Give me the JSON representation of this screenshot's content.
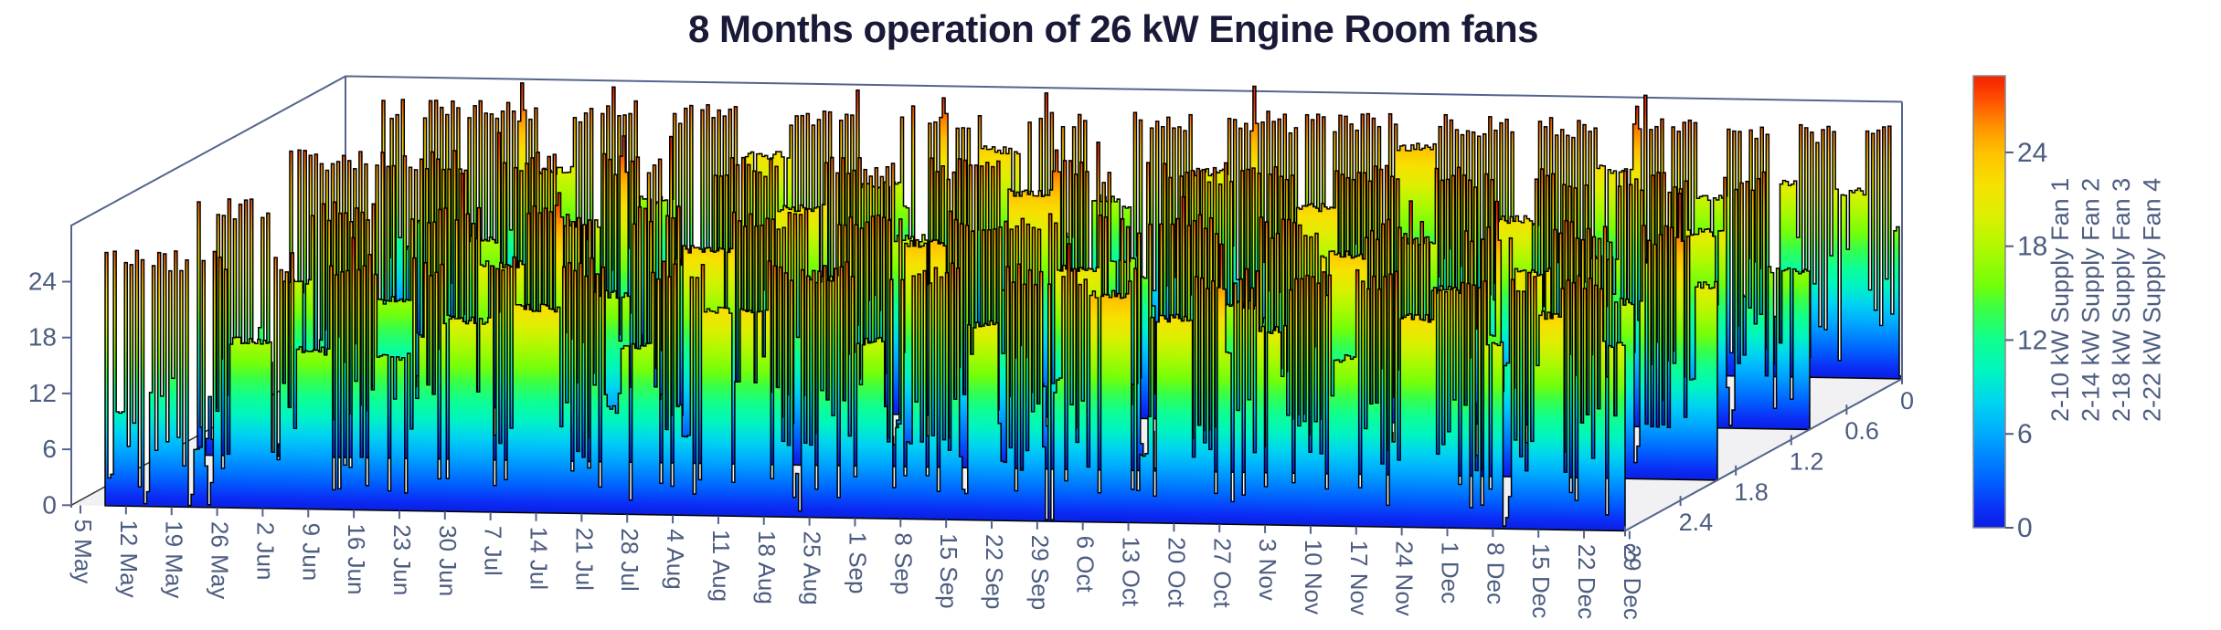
{
  "title": {
    "text": "8 Months operation of 26 kW Engine Room fans"
  },
  "colors": {
    "title": "#191938",
    "axis_line": "#54648c",
    "tick_label": "#4d5d80",
    "floor": "#f1f1f3",
    "ribbon_edge": "#000000",
    "colorbar_border": "#8a8a8a",
    "background": "#ffffff",
    "jet_stops": [
      [
        0.0,
        "#0a20e0"
      ],
      [
        0.035,
        "#0b2bf5"
      ],
      [
        0.104,
        "#0061ff"
      ],
      [
        0.208,
        "#00aaff"
      ],
      [
        0.277,
        "#00d4f0"
      ],
      [
        0.346,
        "#00f5c0"
      ],
      [
        0.415,
        "#0fff90"
      ],
      [
        0.484,
        "#3aff45"
      ],
      [
        0.536,
        "#72ff0a"
      ],
      [
        0.623,
        "#b2f800"
      ],
      [
        0.692,
        "#ddef00"
      ],
      [
        0.761,
        "#f7e000"
      ],
      [
        0.83,
        "#ffc100"
      ],
      [
        0.882,
        "#ff9700"
      ],
      [
        0.934,
        "#ff5e00"
      ],
      [
        0.979,
        "#fa3000"
      ],
      [
        1.0,
        "#f02600"
      ]
    ]
  },
  "chart_data": {
    "type": "3d-ribbon-time-series",
    "title": "8 Months operation of 26 kW Engine Room fans",
    "value_unit": "kW",
    "value_ticks": [
      0,
      6,
      12,
      18,
      24
    ],
    "value_max": 28.9,
    "time_ticks": [
      "5 May",
      "12 May",
      "19 May",
      "26 May",
      "2 Jun",
      "9 Jun",
      "16 Jun",
      "23 Jun",
      "30 Jun",
      "7 Jul",
      "14 Jul",
      "21 Jul",
      "28 Jul",
      "4 Aug",
      "11 Aug",
      "18 Aug",
      "25 Aug",
      "1 Sep",
      "8 Sep",
      "15 Sep",
      "22 Sep",
      "29 Sep",
      "6 Oct",
      "13 Oct",
      "20 Oct",
      "27 Oct",
      "3 Nov",
      "10 Nov",
      "17 Nov",
      "24 Nov",
      "1 Dec",
      "8 Dec",
      "15 Dec",
      "22 Dec",
      "29 Dec"
    ],
    "depth_ticks": [
      "3",
      "2.4",
      "1.8",
      "1.2",
      "0.6",
      "0"
    ],
    "colorbar": {
      "ticks": [
        0,
        6,
        12,
        18,
        24
      ],
      "min": 0,
      "max": 28.9,
      "colormap": "jet"
    },
    "legend_labels": [
      "2-10 kW Supply Fan 1",
      "2-14 kW Supply Fan 2",
      "2-18 kW Supply Fan 3",
      "2-22 kW Supply Fan 4"
    ],
    "series": [
      {
        "name": "2-10 kW Supply Fan 1",
        "depth": 3,
        "segments": [
          {
            "w": 0.12,
            "t": "run",
            "v": 25
          },
          {
            "w": 1.73,
            "t": "cyc"
          },
          {
            "w": 0.15,
            "t": "off"
          },
          {
            "w": 0.8,
            "t": "cyc"
          },
          {
            "w": 0.9,
            "t": "run",
            "v": 18
          },
          {
            "w": 0.6,
            "t": "cyc"
          },
          {
            "w": 0.7,
            "t": "run",
            "v": 17
          },
          {
            "w": 1.1,
            "t": "cyc"
          },
          {
            "w": 0.7,
            "t": "run",
            "v": 16.5
          },
          {
            "w": 0.8,
            "t": "cyc"
          },
          {
            "w": 1.0,
            "t": "run",
            "v": 20.5
          },
          {
            "w": 0.6,
            "t": "cyc"
          },
          {
            "w": 1.0,
            "t": "run",
            "v": 22
          },
          {
            "w": 1.3,
            "t": "cyc"
          },
          {
            "w": 0.7,
            "t": "run",
            "v": 18
          },
          {
            "w": 1.2,
            "t": "cyc"
          },
          {
            "w": 1.4,
            "t": "run",
            "v": 22
          },
          {
            "w": 2.0,
            "t": "cyc"
          },
          {
            "w": 0.7,
            "t": "run",
            "v": 19
          },
          {
            "w": 1.7,
            "t": "cyc"
          },
          {
            "w": 0.8,
            "t": "run",
            "v": 21
          },
          {
            "w": 1.05,
            "t": "cyc"
          },
          {
            "w": 0.15,
            "t": "off"
          },
          {
            "w": 0.8,
            "t": "cyc"
          },
          {
            "w": 0.9,
            "t": "run",
            "v": 24.5
          },
          {
            "w": 0.5,
            "t": "cyc"
          },
          {
            "w": 0.9,
            "t": "run",
            "v": 22
          },
          {
            "w": 1.5,
            "t": "cyc"
          },
          {
            "w": 0.6,
            "t": "run",
            "v": 21
          },
          {
            "w": 1.1,
            "t": "cyc"
          },
          {
            "w": 0.5,
            "t": "run",
            "v": 18
          },
          {
            "w": 1.0,
            "t": "cyc"
          },
          {
            "w": 0.7,
            "t": "run",
            "v": 22.5
          },
          {
            "w": 1.2,
            "t": "cyc"
          },
          {
            "w": 0.4,
            "t": "run",
            "v": 20
          },
          {
            "w": 0.8,
            "t": "cyc"
          },
          {
            "w": 0.5,
            "t": "run",
            "v": 23
          },
          {
            "w": 0.9,
            "t": "cyc"
          },
          {
            "w": 0.5,
            "t": "run",
            "v": 20
          }
        ]
      },
      {
        "name": "2-14 kW Supply Fan 2",
        "depth": 2,
        "segments": [
          {
            "w": 1.7,
            "t": "cyc"
          },
          {
            "w": 0.15,
            "t": "off"
          },
          {
            "w": 0.7,
            "t": "run",
            "v": 19
          },
          {
            "w": 1.4,
            "t": "cyc"
          },
          {
            "w": 0.8,
            "t": "run",
            "v": 17
          },
          {
            "w": 1.6,
            "t": "cyc"
          },
          {
            "w": 1.0,
            "t": "run",
            "v": 21
          },
          {
            "w": 1.5,
            "t": "cyc"
          },
          {
            "w": 0.8,
            "t": "run",
            "v": 18
          },
          {
            "w": 1.2,
            "t": "cyc"
          },
          {
            "w": 1.1,
            "t": "run",
            "v": 23
          },
          {
            "w": 1.7,
            "t": "cyc"
          },
          {
            "w": 0.7,
            "t": "run",
            "v": 20
          },
          {
            "w": 1.5,
            "t": "cyc"
          },
          {
            "w": 0.9,
            "t": "run",
            "v": 24
          },
          {
            "w": 2.5,
            "t": "cyc"
          },
          {
            "w": 0.9,
            "t": "run",
            "v": 21.5
          },
          {
            "w": 1.0,
            "t": "cyc"
          },
          {
            "w": 0.15,
            "t": "off"
          },
          {
            "w": 1.6,
            "t": "cyc"
          },
          {
            "w": 0.8,
            "t": "run",
            "v": 18
          },
          {
            "w": 1.4,
            "t": "cyc"
          },
          {
            "w": 1.0,
            "t": "run",
            "v": 23.5
          },
          {
            "w": 1.5,
            "t": "cyc"
          },
          {
            "w": 0.7,
            "t": "run",
            "v": 20
          },
          {
            "w": 1.2,
            "t": "cyc"
          },
          {
            "w": 0.8,
            "t": "run",
            "v": 22
          },
          {
            "w": 1.4,
            "t": "cyc"
          },
          {
            "w": 0.6,
            "t": "run",
            "v": 19
          },
          {
            "w": 1.2,
            "t": "cyc"
          },
          {
            "w": 0.5,
            "t": "run",
            "v": 21
          }
        ]
      },
      {
        "name": "2-18 kW Supply Fan 3",
        "depth": 1,
        "segments": [
          {
            "w": 1.8,
            "t": "cyc"
          },
          {
            "w": 0.15,
            "t": "off"
          },
          {
            "w": 2.0,
            "t": "cyc"
          },
          {
            "w": 0.7,
            "t": "run",
            "v": 18
          },
          {
            "w": 1.4,
            "t": "cyc"
          },
          {
            "w": 0.9,
            "t": "run",
            "v": 20
          },
          {
            "w": 1.7,
            "t": "cyc"
          },
          {
            "w": 0.8,
            "t": "run",
            "v": 16
          },
          {
            "w": 1.5,
            "t": "cyc"
          },
          {
            "w": 1.0,
            "t": "run",
            "v": 22
          },
          {
            "w": 1.6,
            "t": "cyc"
          },
          {
            "w": 0.8,
            "t": "run",
            "v": 19
          },
          {
            "w": 1.7,
            "t": "cyc"
          },
          {
            "w": 1.0,
            "t": "run",
            "v": 24
          },
          {
            "w": 1.3,
            "t": "cyc"
          },
          {
            "w": 0.7,
            "t": "run",
            "v": 17
          },
          {
            "w": 2.1,
            "t": "cyc"
          },
          {
            "w": 0.15,
            "t": "off"
          },
          {
            "w": 1.2,
            "t": "cyc"
          },
          {
            "w": 0.9,
            "t": "run",
            "v": 23
          },
          {
            "w": 1.5,
            "t": "cyc"
          },
          {
            "w": 0.7,
            "t": "run",
            "v": 19.5
          },
          {
            "w": 1.4,
            "t": "cyc"
          },
          {
            "w": 0.8,
            "t": "run",
            "v": 22
          },
          {
            "w": 1.3,
            "t": "cyc"
          },
          {
            "w": 0.6,
            "t": "run",
            "v": 18
          },
          {
            "w": 1.6,
            "t": "cyc"
          },
          {
            "w": 0.8,
            "t": "run",
            "v": 21
          },
          {
            "w": 1.0,
            "t": "cyc"
          },
          {
            "w": 0.9,
            "t": "run",
            "v": 17
          }
        ]
      },
      {
        "name": "2-22 kW Supply Fan 4",
        "depth": 0,
        "segments": [
          {
            "w": 1.75,
            "t": "cyc"
          },
          {
            "w": 0.15,
            "t": "off"
          },
          {
            "w": 1.6,
            "t": "cyc"
          },
          {
            "w": 0.8,
            "t": "run",
            "v": 20
          },
          {
            "w": 1.5,
            "t": "cyc"
          },
          {
            "w": 0.7,
            "t": "run",
            "v": 17
          },
          {
            "w": 1.6,
            "t": "cyc"
          },
          {
            "w": 1.0,
            "t": "run",
            "v": 22
          },
          {
            "w": 1.6,
            "t": "cyc"
          },
          {
            "w": 0.9,
            "t": "run",
            "v": 19
          },
          {
            "w": 1.8,
            "t": "cyc"
          },
          {
            "w": 0.9,
            "t": "run",
            "v": 23
          },
          {
            "w": 1.5,
            "t": "cyc"
          },
          {
            "w": 0.7,
            "t": "run",
            "v": 18
          },
          {
            "w": 1.6,
            "t": "cyc"
          },
          {
            "w": 0.8,
            "t": "run",
            "v": 21
          },
          {
            "w": 2.25,
            "t": "cyc"
          },
          {
            "w": 0.15,
            "t": "off"
          },
          {
            "w": 1.4,
            "t": "cyc"
          },
          {
            "w": 0.9,
            "t": "run",
            "v": 24
          },
          {
            "w": 1.7,
            "t": "cyc"
          },
          {
            "w": 0.6,
            "t": "run",
            "v": 16
          },
          {
            "w": 1.3,
            "t": "cyc"
          },
          {
            "w": 0.8,
            "t": "run",
            "v": 22
          },
          {
            "w": 1.4,
            "t": "cyc"
          },
          {
            "w": 0.7,
            "t": "run",
            "v": 19
          },
          {
            "w": 1.1,
            "t": "cyc"
          },
          {
            "w": 0.5,
            "t": "run",
            "v": 21
          },
          {
            "w": 0.8,
            "t": "cyc"
          },
          {
            "w": 0.7,
            "t": "run",
            "v": 20
          },
          {
            "w": 0.8,
            "t": "cyc"
          }
        ]
      }
    ]
  }
}
